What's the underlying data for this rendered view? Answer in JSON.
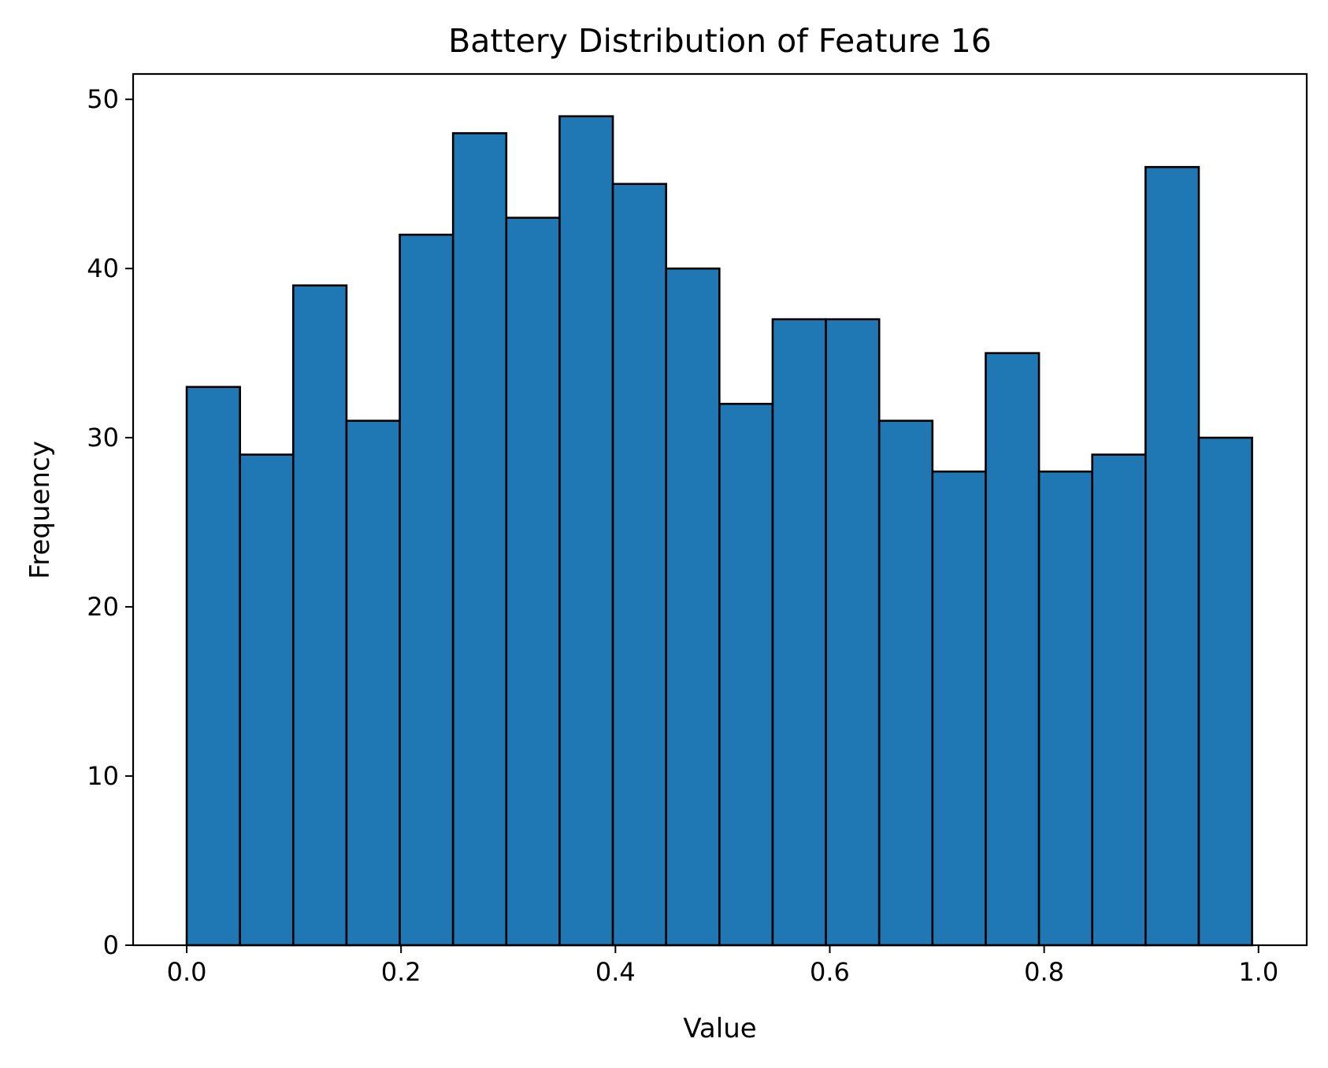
{
  "chart_data": {
    "type": "histogram",
    "title": "Battery Distribution of Feature 16",
    "xlabel": "Value",
    "ylabel": "Frequency",
    "xlim": [
      -0.05,
      1.045
    ],
    "ylim": [
      0,
      51.5
    ],
    "xticks": [
      0.0,
      0.2,
      0.4,
      0.6,
      0.8,
      1.0
    ],
    "xtick_labels": [
      "0.0",
      "0.2",
      "0.4",
      "0.6",
      "0.8",
      "1.0"
    ],
    "yticks": [
      0,
      10,
      20,
      30,
      40,
      50
    ],
    "ytick_labels": [
      "0",
      "10",
      "20",
      "30",
      "40",
      "50"
    ],
    "bin_edges": [
      0.0,
      0.0497,
      0.0994,
      0.1491,
      0.1988,
      0.2485,
      0.2982,
      0.3479,
      0.3976,
      0.4473,
      0.497,
      0.5467,
      0.5964,
      0.6461,
      0.6958,
      0.7455,
      0.7952,
      0.8449,
      0.8946,
      0.9443,
      0.994
    ],
    "values": [
      33,
      29,
      39,
      31,
      42,
      48,
      43,
      49,
      45,
      40,
      32,
      37,
      37,
      31,
      28,
      35,
      28,
      29,
      46,
      30
    ],
    "bar_color": "#1f77b4",
    "edge_color": "#000000",
    "grid": false
  }
}
